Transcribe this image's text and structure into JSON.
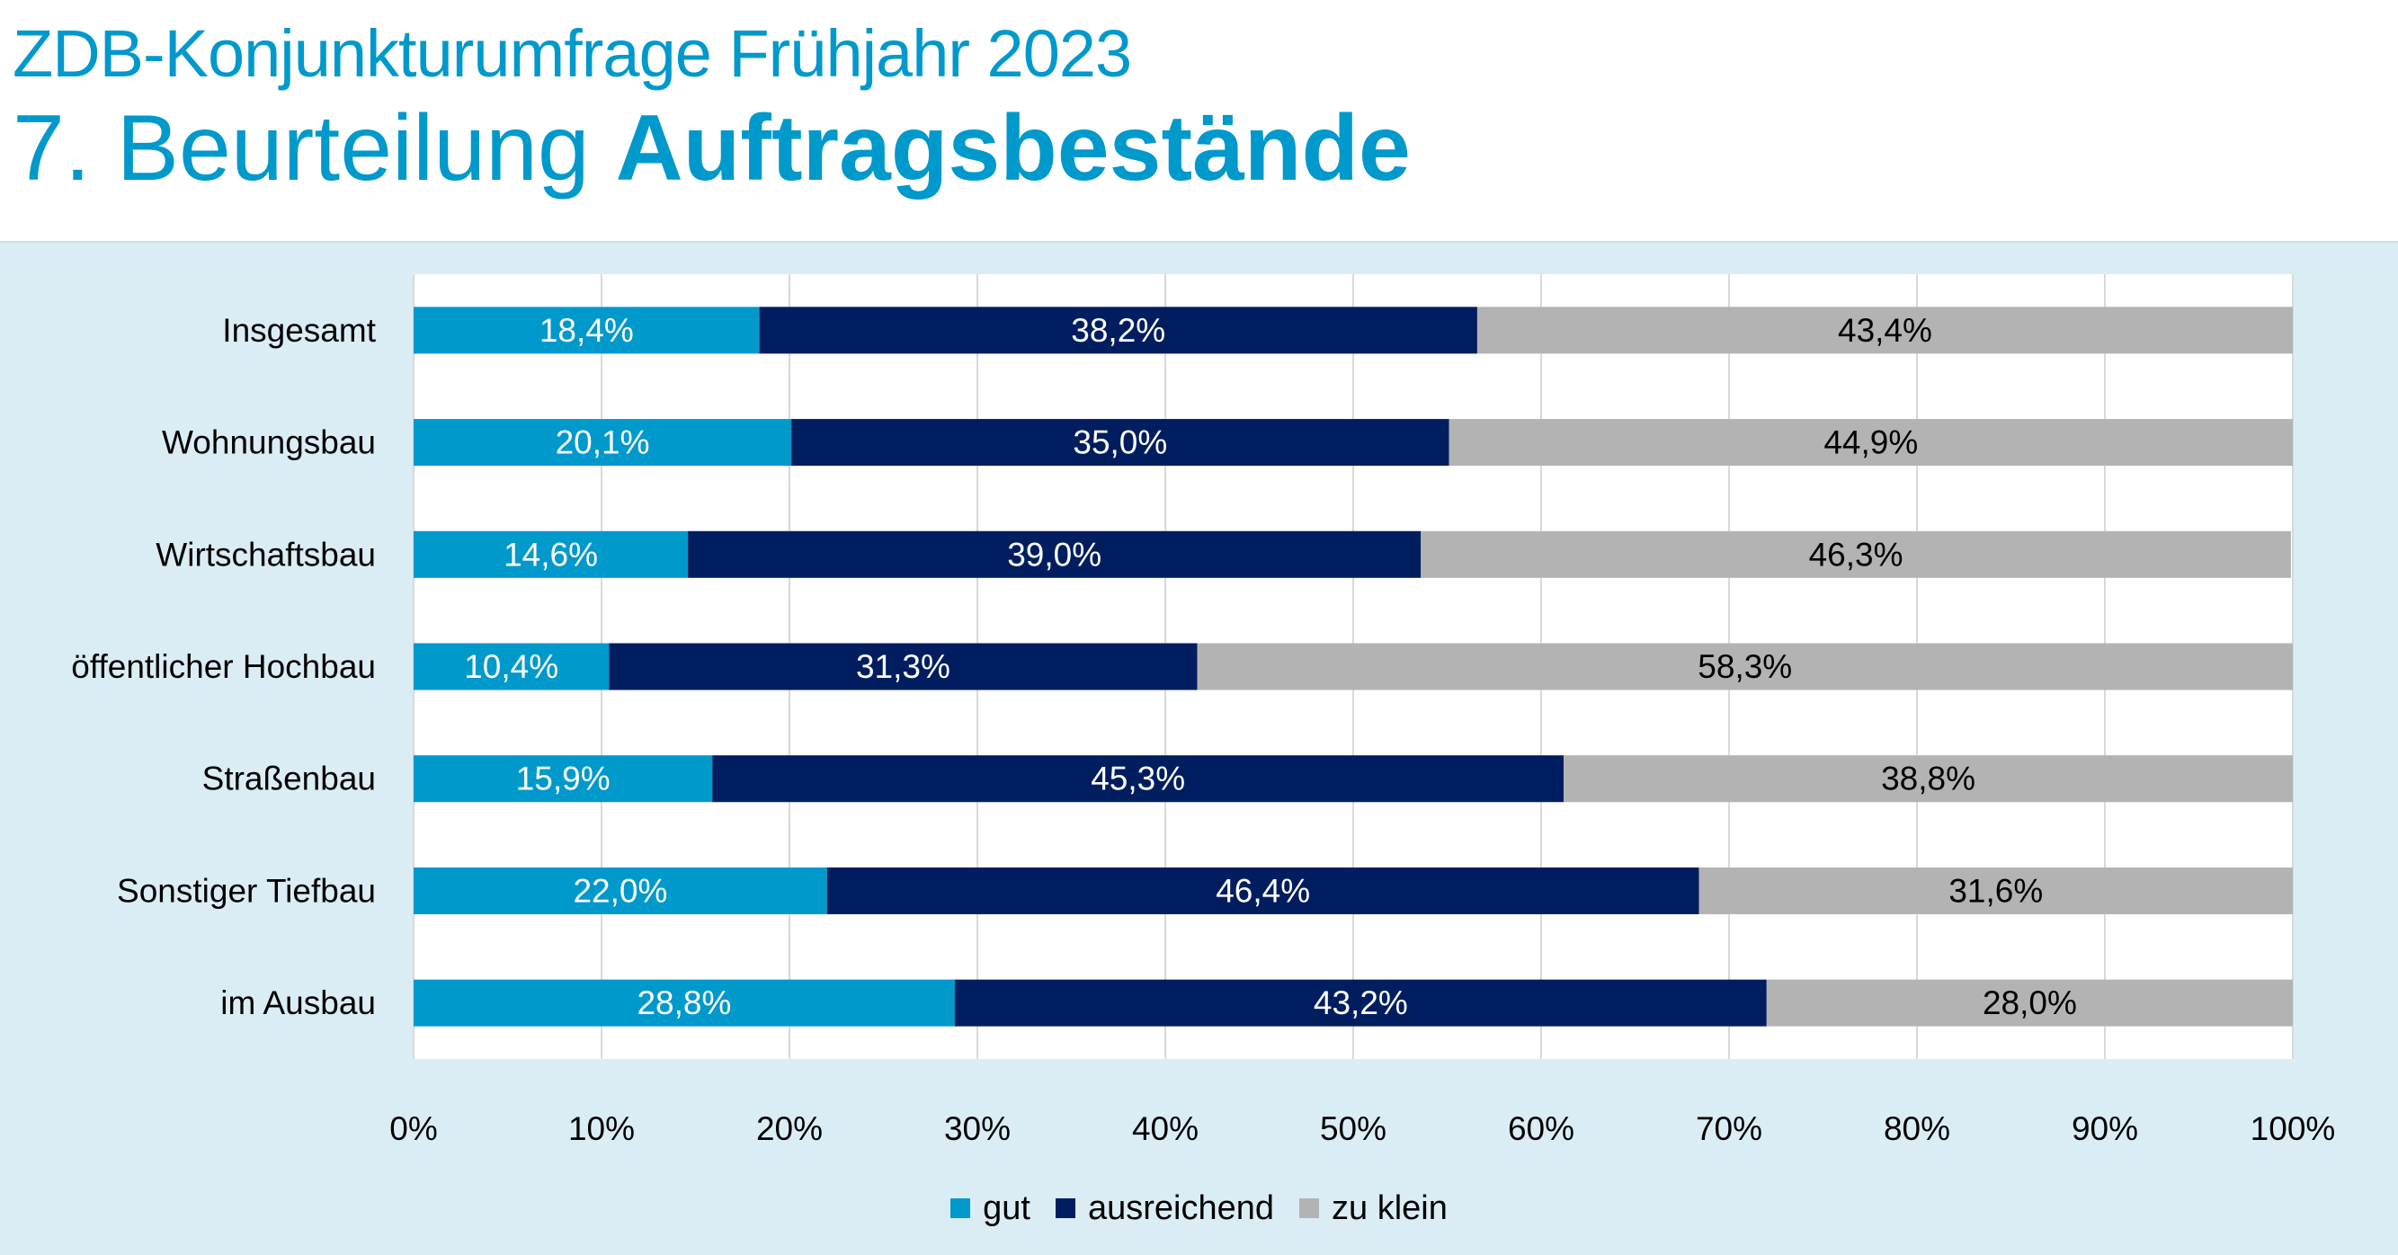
{
  "header": {
    "title_line1": "ZDB-Konjunkturumfrage Frühjahr 2023",
    "title_line2_prefix": "7. Beurteilung ",
    "title_line2_bold": "Auftragsbestände"
  },
  "colors": {
    "accent": "#0099cc",
    "panel_background": "#dbedf4"
  },
  "chart_data": {
    "type": "bar",
    "orientation": "horizontal",
    "stacked": true,
    "percent_stacked": true,
    "categories": [
      "Insgesamt",
      "Wohnungsbau",
      "Wirtschaftsbau",
      "öffentlicher Hochbau",
      "Straßenbau",
      "Sonstiger Tiefbau",
      "im Ausbau"
    ],
    "series": [
      {
        "name": "gut",
        "color": "#0099cc",
        "label_color": "#ffffff",
        "values": [
          18.4,
          20.1,
          14.6,
          10.4,
          15.9,
          22.0,
          28.8
        ],
        "labels": [
          "18,4%",
          "20,1%",
          "14,6%",
          "10,4%",
          "15,9%",
          "22,0%",
          "28,8%"
        ]
      },
      {
        "name": "ausreichend",
        "color": "#001e5f",
        "label_color": "#ffffff",
        "values": [
          38.2,
          35.0,
          39.0,
          31.3,
          45.3,
          46.4,
          43.2
        ],
        "labels": [
          "38,2%",
          "35,0%",
          "39,0%",
          "31,3%",
          "45,3%",
          "46,4%",
          "43,2%"
        ]
      },
      {
        "name": "zu klein",
        "color": "#b3b3b3",
        "label_color": "#000000",
        "values": [
          43.4,
          44.9,
          46.3,
          58.3,
          38.8,
          31.6,
          28.0
        ],
        "labels": [
          "43,4%",
          "44,9%",
          "46,3%",
          "58,3%",
          "38,8%",
          "31,6%",
          "28,0%"
        ]
      }
    ],
    "xlim": [
      0,
      100
    ],
    "xticks": [
      "0%",
      "10%",
      "20%",
      "30%",
      "40%",
      "50%",
      "60%",
      "70%",
      "80%",
      "90%",
      "100%"
    ],
    "grid": true,
    "legend_position": "bottom"
  }
}
